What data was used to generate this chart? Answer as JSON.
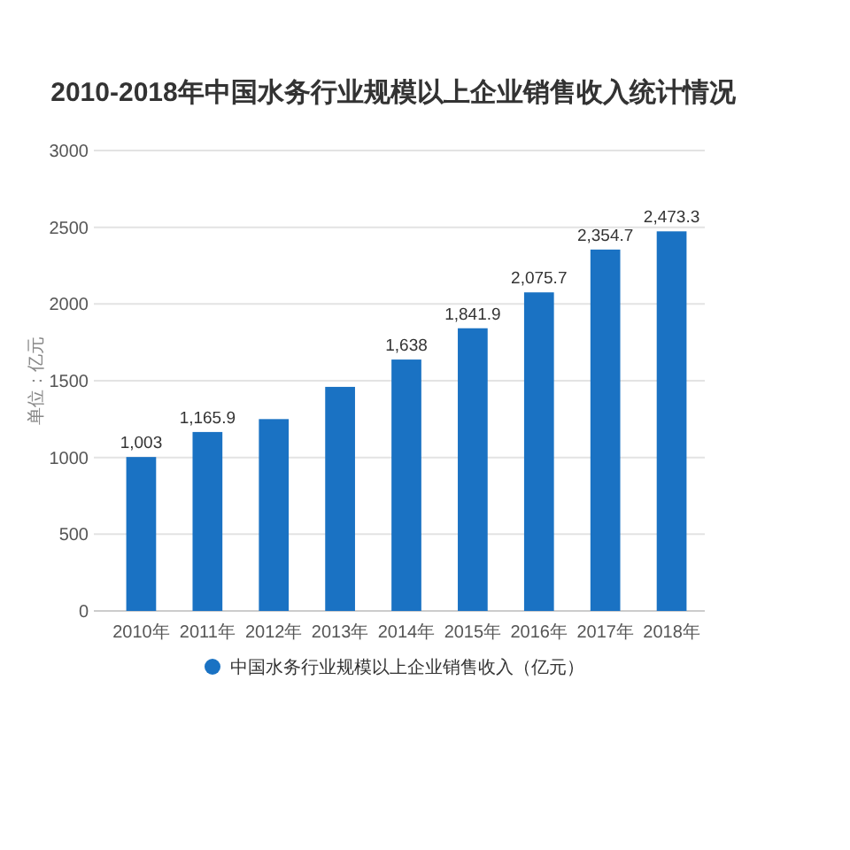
{
  "chart_data": {
    "type": "bar",
    "title": "2010-2018年中国水务行业规模以上企业销售收入统计情况",
    "ylabel": "单位：亿元",
    "categories": [
      "2010年",
      "2011年",
      "2012年",
      "2013年",
      "2014年",
      "2015年",
      "2016年",
      "2017年",
      "2018年"
    ],
    "series": [
      {
        "name": "中国水务行业规模以上企业销售收入（亿元）",
        "color": "#1a72c3",
        "values": [
          1003,
          1165.9,
          1250,
          1460,
          1638,
          1841.9,
          2075.7,
          2354.7,
          2473.3
        ],
        "value_labels": [
          "1,003",
          "1,165.9",
          null,
          null,
          "1,638",
          "1,841.9",
          "2,075.7",
          "2,354.7",
          "2,473.3"
        ]
      }
    ],
    "ylim": [
      0,
      3000
    ],
    "yticks": [
      0,
      500,
      1000,
      1500,
      2000,
      2500,
      3000
    ],
    "grid": "y",
    "legend": "bottom"
  }
}
